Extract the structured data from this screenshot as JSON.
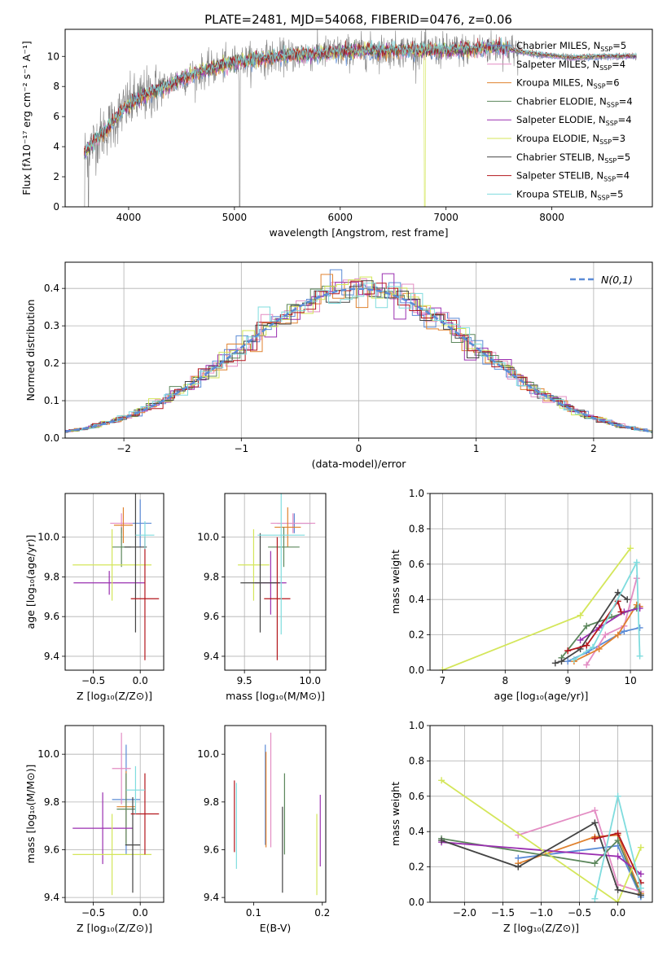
{
  "title": "PLATE=2481, MJD=54068, FIBERID=0476, z=0.06",
  "models": [
    {
      "name": "Chabrier MILES",
      "nssp": "5",
      "color": "#5b8bd6"
    },
    {
      "name": "Salpeter MILES",
      "nssp": "4",
      "color": "#e38cc3"
    },
    {
      "name": "Kroupa MILES",
      "nssp": "6",
      "color": "#e0822f"
    },
    {
      "name": "Chabrier ELODIE",
      "nssp": "4",
      "color": "#5c875c"
    },
    {
      "name": "Salpeter ELODIE",
      "nssp": "4",
      "color": "#9a2fb0"
    },
    {
      "name": "Kroupa ELODIE",
      "nssp": "3",
      "color": "#d4e65a"
    },
    {
      "name": "Chabrier STELIB",
      "nssp": "5",
      "color": "#444444"
    },
    {
      "name": "Salpeter STELIB",
      "nssp": "4",
      "color": "#b3161c"
    },
    {
      "name": "Kroupa STELIB",
      "nssp": "5",
      "color": "#7fdcde"
    }
  ],
  "chart_data": [
    {
      "id": "spectrum",
      "type": "line",
      "xlabel": "wavelength [Angstrom, rest frame]",
      "ylabel": "Flux [fλ10⁻¹⁷ erg cm⁻² s⁻¹ A⁻¹]",
      "xlim": [
        3400,
        8950
      ],
      "ylim": [
        0,
        11.8
      ],
      "xticks": [
        4000,
        5000,
        6000,
        7000,
        8000
      ],
      "yticks": [
        0,
        2,
        4,
        6,
        8,
        10
      ],
      "continuum": {
        "x": [
          3580,
          3700,
          3850,
          3950,
          4100,
          4300,
          4500,
          4700,
          5000,
          5300,
          5600,
          6000,
          6500,
          7000,
          7300,
          7500,
          7700,
          7900,
          8200,
          8500,
          8800
        ],
        "y": [
          3.6,
          4.5,
          5.6,
          6.5,
          7.2,
          7.9,
          8.5,
          9.0,
          9.6,
          9.9,
          10.1,
          10.3,
          10.4,
          10.4,
          10.5,
          10.6,
          10.3,
          10.1,
          9.9,
          10.0,
          10.0
        ]
      },
      "observed_color": "#808080"
    },
    {
      "id": "residuals",
      "type": "bar",
      "xlabel": "(data-model)/error",
      "ylabel": "Normed distribution",
      "xlim": [
        -2.5,
        2.5
      ],
      "ylim": [
        0,
        0.47
      ],
      "xticks": [
        -2,
        -1,
        0,
        1,
        2
      ],
      "yticks": [
        0.0,
        0.1,
        0.2,
        0.3,
        0.4
      ],
      "grid": true,
      "legend": "N(0,1)",
      "legend_position": "top-right",
      "bin_width": 0.1
    },
    {
      "id": "z-age",
      "type": "scatter",
      "xlabel": "Z [log₁₀(Z/Z⊙)]",
      "ylabel": "age  [log₁₀(age/yr)]",
      "xlim": [
        -0.8,
        0.25
      ],
      "ylim": [
        9.33,
        10.22
      ],
      "xticks": [
        -0.5,
        0.0
      ],
      "yticks": [
        9.4,
        9.6,
        9.8,
        10.0
      ],
      "grid": true,
      "points": [
        {
          "m": 0,
          "x": 0.0,
          "y": 10.07,
          "dx": 0.12,
          "dy": 0.12
        },
        {
          "m": 1,
          "x": -0.2,
          "y": 10.07,
          "dx": 0.12,
          "dy": 0.05
        },
        {
          "m": 2,
          "x": -0.18,
          "y": 10.06,
          "dx": 0.1,
          "dy": 0.09
        },
        {
          "m": 3,
          "x": -0.2,
          "y": 9.95,
          "dx": 0.1,
          "dy": 0.1
        },
        {
          "m": 4,
          "x": -0.33,
          "y": 9.77,
          "dx": 0.38,
          "dy": 0.06
        },
        {
          "m": 5,
          "x": -0.3,
          "y": 9.86,
          "dx": 0.42,
          "dy": 0.18
        },
        {
          "m": 6,
          "x": -0.05,
          "y": 9.95,
          "dx": 0.12,
          "dy": 0.43
        },
        {
          "m": 7,
          "x": 0.05,
          "y": 9.69,
          "dx": 0.15,
          "dy": 0.31
        },
        {
          "m": 8,
          "x": 0.05,
          "y": 10.01,
          "dx": 0.1,
          "dy": 0.07
        }
      ]
    },
    {
      "id": "mass-age",
      "type": "scatter",
      "xlabel": "mass [log₁₀(M/M⊙)]",
      "ylabel": "",
      "xlim": [
        9.35,
        10.12
      ],
      "ylim": [
        9.33,
        10.22
      ],
      "xticks": [
        9.5,
        10.0
      ],
      "yticks": [
        9.4,
        9.6,
        9.8,
        10.0
      ],
      "grid": true,
      "points": [
        {
          "m": 0,
          "x": 9.88,
          "y": 10.07,
          "dx": 0.13,
          "dy": 0.05
        },
        {
          "m": 1,
          "x": 9.87,
          "y": 10.07,
          "dx": 0.17,
          "dy": 0.05
        },
        {
          "m": 2,
          "x": 9.83,
          "y": 10.05,
          "dx": 0.1,
          "dy": 0.1
        },
        {
          "m": 3,
          "x": 9.8,
          "y": 9.95,
          "dx": 0.12,
          "dy": 0.1
        },
        {
          "m": 4,
          "x": 9.7,
          "y": 9.77,
          "dx": 0.12,
          "dy": 0.16
        },
        {
          "m": 5,
          "x": 9.57,
          "y": 9.86,
          "dx": 0.12,
          "dy": 0.18
        },
        {
          "m": 6,
          "x": 9.62,
          "y": 9.77,
          "dx": 0.15,
          "dy": 0.25
        },
        {
          "m": 7,
          "x": 9.75,
          "y": 9.69,
          "dx": 0.1,
          "dy": 0.31
        },
        {
          "m": 8,
          "x": 9.78,
          "y": 10.01,
          "dx": 0.18,
          "dy": 0.5
        }
      ]
    },
    {
      "id": "age-weight",
      "type": "line",
      "xlabel": "age  [log₁₀(age/yr)]",
      "ylabel": "mass weight",
      "xlim": [
        6.8,
        10.35
      ],
      "ylim": [
        0,
        1.0
      ],
      "xticks": [
        7,
        8,
        9,
        10
      ],
      "yticks": [
        0.0,
        0.2,
        0.4,
        0.6,
        0.8,
        1.0
      ],
      "grid": true,
      "series": [
        {
          "m": 0,
          "x": [
            9.0,
            9.3,
            9.9,
            10.15
          ],
          "y": [
            0.05,
            0.1,
            0.22,
            0.24
          ]
        },
        {
          "m": 1,
          "x": [
            9.3,
            9.6,
            9.9,
            10.1
          ],
          "y": [
            0.03,
            0.2,
            0.25,
            0.52
          ]
        },
        {
          "m": 2,
          "x": [
            9.1,
            9.5,
            9.8,
            10.1,
            10.15
          ],
          "y": [
            0.05,
            0.12,
            0.2,
            0.37,
            0.36
          ]
        },
        {
          "m": 3,
          "x": [
            8.9,
            9.3,
            9.7,
            10.1
          ],
          "y": [
            0.07,
            0.25,
            0.3,
            0.35
          ]
        },
        {
          "m": 4,
          "x": [
            9.2,
            9.5,
            9.9,
            10.15
          ],
          "y": [
            0.17,
            0.24,
            0.33,
            0.35
          ]
        },
        {
          "m": 5,
          "x": [
            7.0,
            9.2,
            10.0
          ],
          "y": [
            0.0,
            0.31,
            0.69
          ]
        },
        {
          "m": 6,
          "x": [
            8.8,
            8.9,
            9.2,
            9.8,
            9.95
          ],
          "y": [
            0.04,
            0.05,
            0.12,
            0.44,
            0.4
          ]
        },
        {
          "m": 7,
          "x": [
            9.0,
            9.3,
            9.8,
            9.85
          ],
          "y": [
            0.11,
            0.14,
            0.39,
            0.33
          ]
        },
        {
          "m": 8,
          "x": [
            9.1,
            9.4,
            10.1,
            10.15
          ],
          "y": [
            0.06,
            0.13,
            0.61,
            0.08
          ]
        }
      ]
    },
    {
      "id": "z-mass",
      "type": "scatter",
      "xlabel": "Z [log₁₀(Z/Z⊙)]",
      "ylabel": "mass [log₁₀(M/M⊙)]",
      "xlim": [
        -0.8,
        0.25
      ],
      "ylim": [
        9.38,
        10.12
      ],
      "xticks": [
        -0.5,
        0.0
      ],
      "yticks": [
        9.4,
        9.6,
        9.8,
        10.0
      ],
      "grid": true,
      "points": [
        {
          "m": 0,
          "x": -0.15,
          "y": 9.81,
          "dx": 0.15,
          "dy": 0.23
        },
        {
          "m": 1,
          "x": -0.2,
          "y": 9.94,
          "dx": 0.1,
          "dy": 0.15
        },
        {
          "m": 2,
          "x": -0.15,
          "y": 9.78,
          "dx": 0.1,
          "dy": 0.15
        },
        {
          "m": 3,
          "x": -0.15,
          "y": 9.77,
          "dx": 0.1,
          "dy": 0.15
        },
        {
          "m": 4,
          "x": -0.4,
          "y": 9.69,
          "dx": 0.32,
          "dy": 0.15
        },
        {
          "m": 5,
          "x": -0.3,
          "y": 9.58,
          "dx": 0.42,
          "dy": 0.17
        },
        {
          "m": 6,
          "x": -0.08,
          "y": 9.62,
          "dx": 0.08,
          "dy": 0.2
        },
        {
          "m": 7,
          "x": 0.05,
          "y": 9.75,
          "dx": 0.15,
          "dy": 0.17
        },
        {
          "m": 8,
          "x": -0.05,
          "y": 9.85,
          "dx": 0.1,
          "dy": 0.1
        }
      ]
    },
    {
      "id": "ebv-mass",
      "type": "scatter",
      "xlabel": "E(B-V)",
      "ylabel": "",
      "xlim": [
        0.058,
        0.205
      ],
      "ylim": [
        9.38,
        10.12
      ],
      "xticks": [
        0.1,
        0.2
      ],
      "yticks": [
        9.4,
        9.6,
        9.8,
        10.0
      ],
      "grid": false,
      "points": [
        {
          "m": 0,
          "x": 0.117,
          "y": 9.83,
          "dy": 0.21
        },
        {
          "m": 1,
          "x": 0.125,
          "y": 9.85,
          "dy": 0.24
        },
        {
          "m": 2,
          "x": 0.118,
          "y": 9.81,
          "dy": 0.2
        },
        {
          "m": 3,
          "x": 0.145,
          "y": 9.75,
          "dy": 0.17
        },
        {
          "m": 4,
          "x": 0.197,
          "y": 9.68,
          "dy": 0.15
        },
        {
          "m": 5,
          "x": 0.192,
          "y": 9.58,
          "dy": 0.17
        },
        {
          "m": 6,
          "x": 0.142,
          "y": 9.6,
          "dy": 0.18
        },
        {
          "m": 7,
          "x": 0.072,
          "y": 9.74,
          "dy": 0.15
        },
        {
          "m": 8,
          "x": 0.075,
          "y": 9.7,
          "dy": 0.18
        }
      ]
    },
    {
      "id": "z-weight",
      "type": "line",
      "xlabel": "Z [log₁₀(Z/Z⊙)]",
      "ylabel": "mass weight",
      "xlim": [
        -2.45,
        0.45
      ],
      "ylim": [
        0,
        1.0
      ],
      "xticks": [
        -2.0,
        -1.5,
        -1.0,
        -0.5,
        0.0
      ],
      "yticks": [
        0.0,
        0.2,
        0.4,
        0.6,
        0.8,
        1.0
      ],
      "grid": true,
      "series": [
        {
          "m": 0,
          "x": [
            -1.3,
            0.0,
            0.3
          ],
          "y": [
            0.25,
            0.32,
            0.03
          ]
        },
        {
          "m": 1,
          "x": [
            -1.3,
            -0.3,
            0.0,
            0.3
          ],
          "y": [
            0.38,
            0.52,
            0.1,
            0.06
          ]
        },
        {
          "m": 2,
          "x": [
            -1.3,
            -0.3,
            0.0,
            0.3
          ],
          "y": [
            0.22,
            0.37,
            0.38,
            0.05
          ]
        },
        {
          "m": 3,
          "x": [
            -2.3,
            -0.3,
            0.0,
            0.3
          ],
          "y": [
            0.36,
            0.22,
            0.35,
            0.04
          ]
        },
        {
          "m": 4,
          "x": [
            -2.3,
            0.0,
            0.3
          ],
          "y": [
            0.34,
            0.26,
            0.16
          ]
        },
        {
          "m": 5,
          "x": [
            -2.3,
            0.0,
            0.3
          ],
          "y": [
            0.69,
            0.0,
            0.31
          ]
        },
        {
          "m": 6,
          "x": [
            -2.3,
            -1.3,
            -0.3,
            0.0,
            0.3
          ],
          "y": [
            0.35,
            0.2,
            0.45,
            0.07,
            0.04
          ]
        },
        {
          "m": 7,
          "x": [
            -0.3,
            0.0,
            0.3
          ],
          "y": [
            0.36,
            0.39,
            0.11
          ]
        },
        {
          "m": 8,
          "x": [
            -0.3,
            0.0,
            0.3
          ],
          "y": [
            0.02,
            0.6,
            0.08
          ]
        }
      ]
    }
  ]
}
